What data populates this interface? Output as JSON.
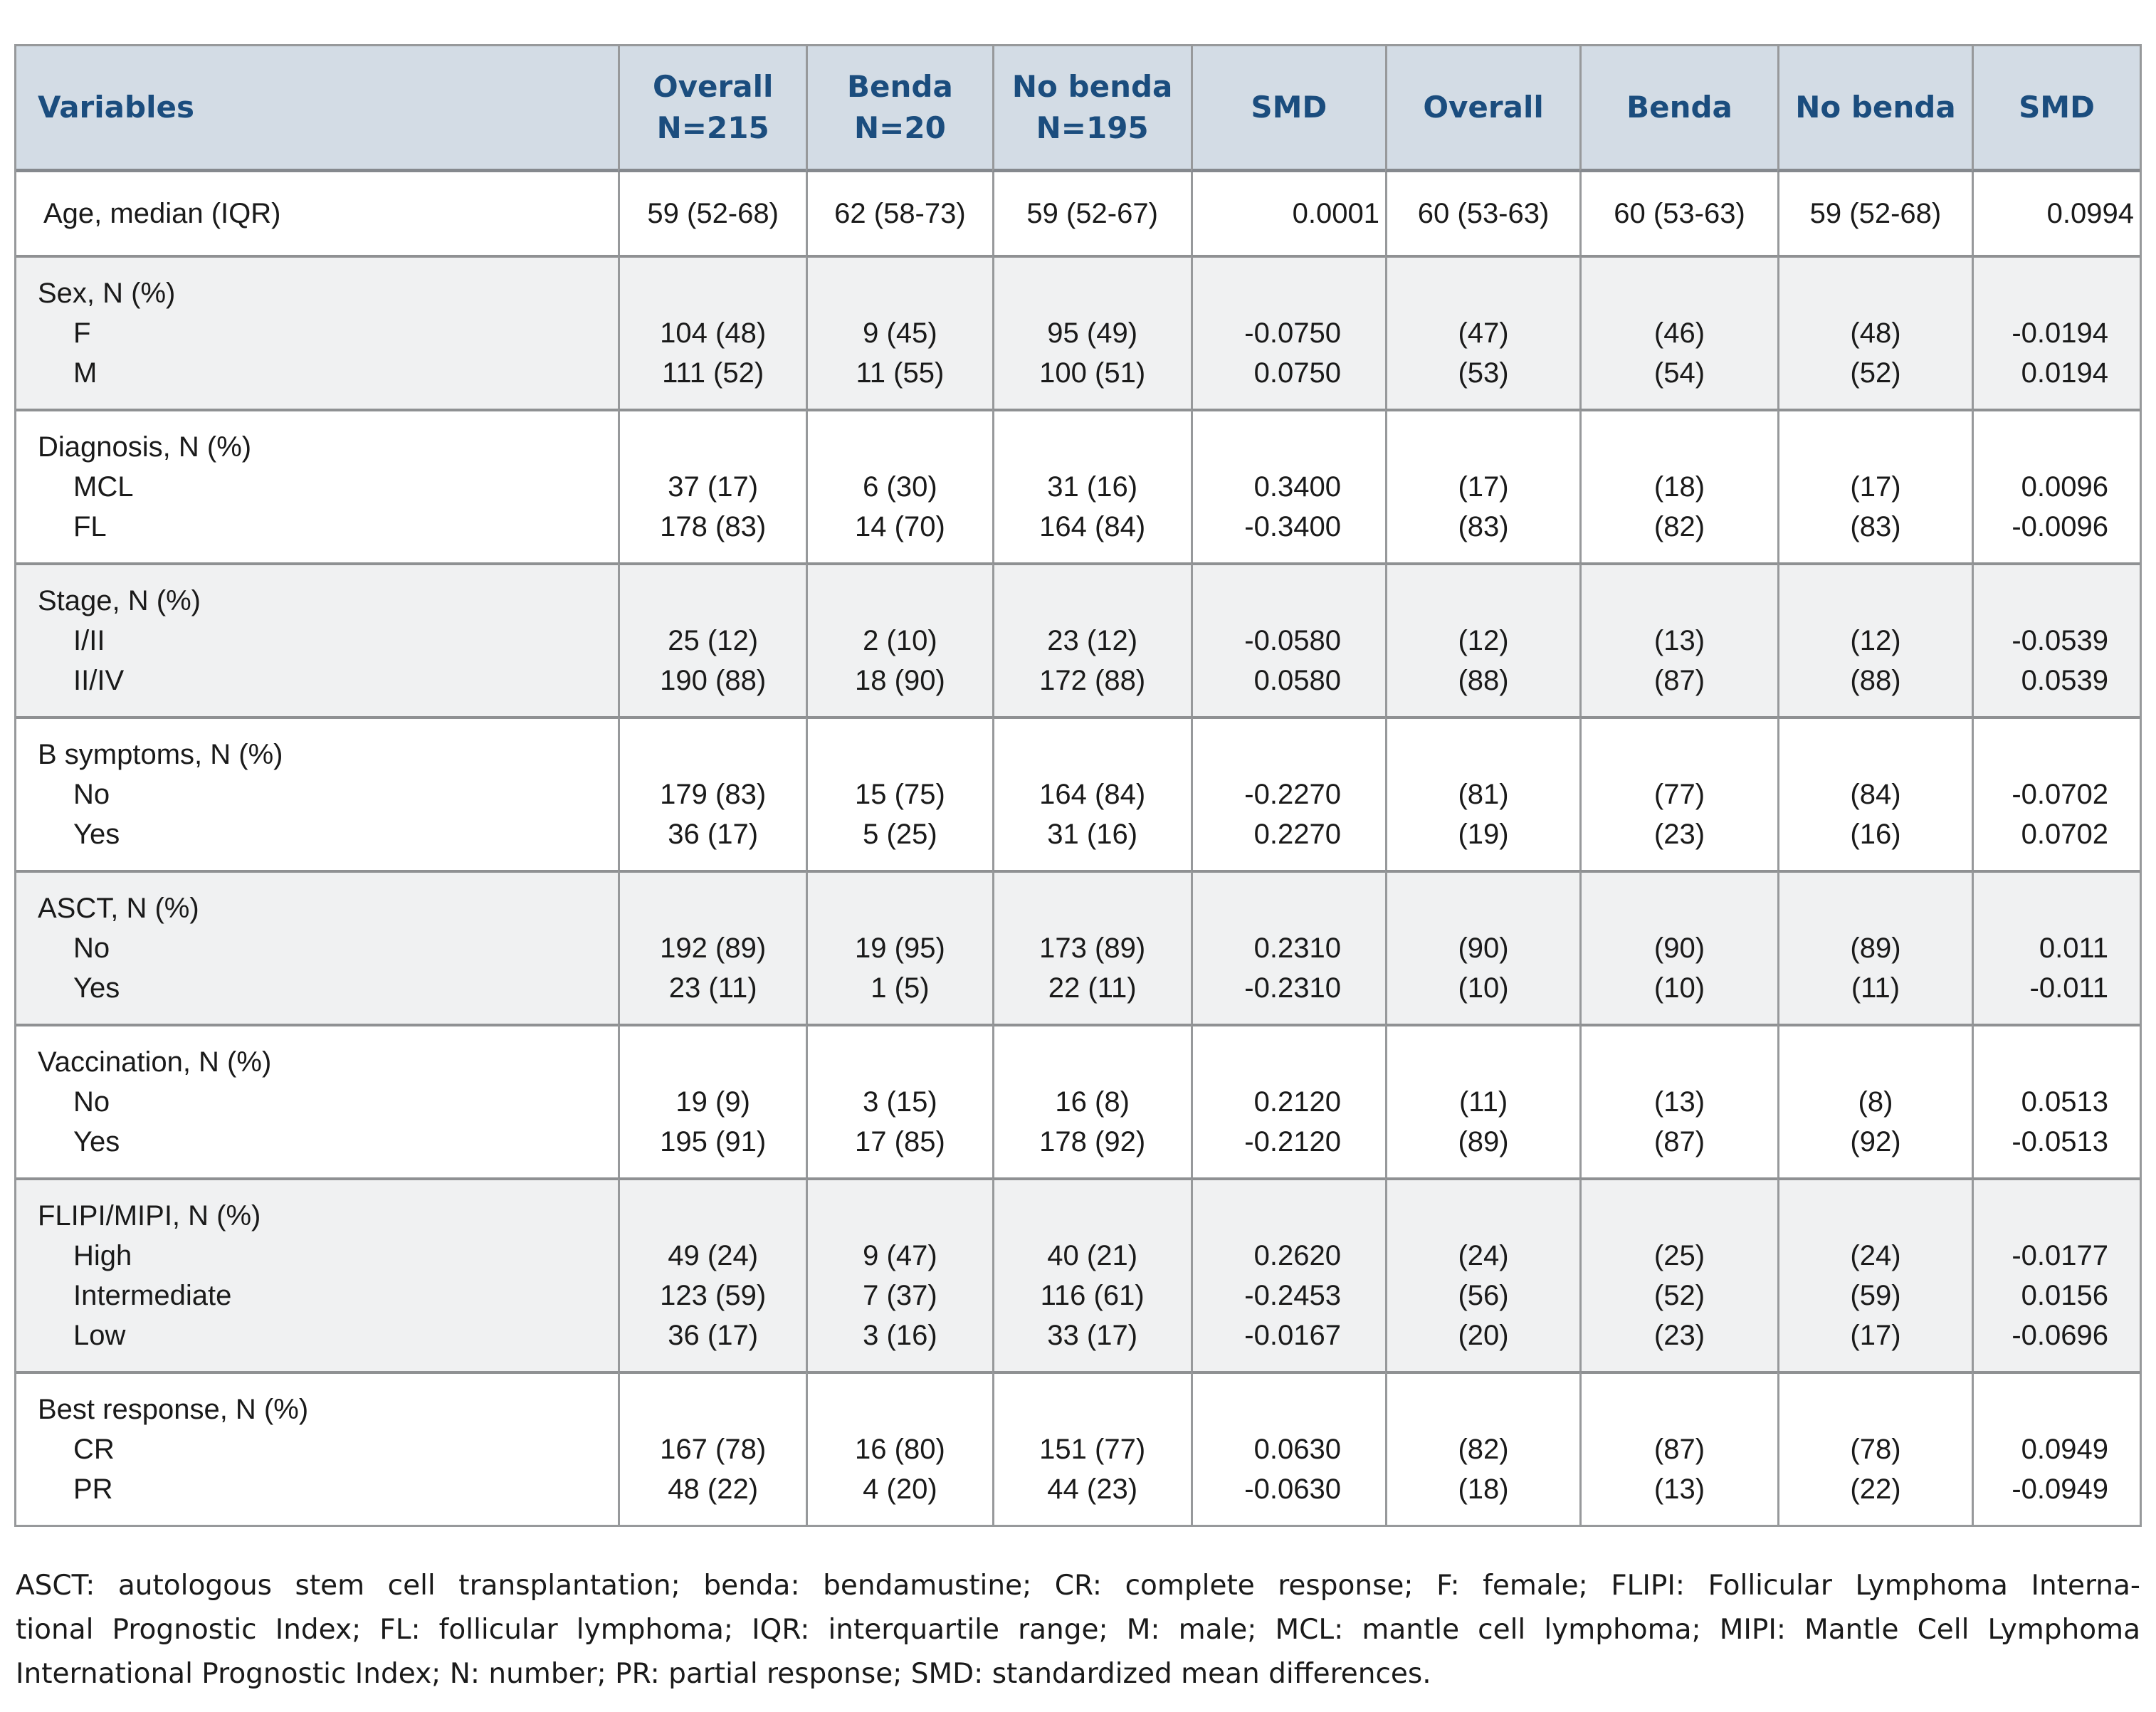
{
  "colors": {
    "header_bg": "#d3dce5",
    "header_text": "#1b4d7e",
    "shaded_band_bg": "#f0f1f2",
    "border": "#97999b",
    "separator": "#8f9193",
    "text": "#1a1a1a"
  },
  "header": {
    "columns": [
      {
        "label": "Variables",
        "sub": ""
      },
      {
        "label": "Overall",
        "sub": "N=215"
      },
      {
        "label": "Benda",
        "sub": "N=20"
      },
      {
        "label": "No benda",
        "sub": "N=195"
      },
      {
        "label": "SMD",
        "sub": ""
      },
      {
        "label": "Overall",
        "sub": ""
      },
      {
        "label": "Benda",
        "sub": ""
      },
      {
        "label": "No benda",
        "sub": ""
      },
      {
        "label": "SMD",
        "sub": ""
      }
    ]
  },
  "bands": [
    {
      "name": "age",
      "label": "Age, median (IQR)",
      "single": true,
      "shaded": false,
      "rows": [
        {
          "sub": "",
          "values": [
            "59 (52-68)",
            "62 (58-73)",
            "59 (52-67)",
            "0.0001",
            "60 (53-63)",
            "60 (53-63)",
            "59 (52-68)",
            "0.0994"
          ]
        }
      ]
    },
    {
      "name": "sex",
      "label": "Sex, N (%)",
      "single": false,
      "shaded": true,
      "rows": [
        {
          "sub": "F",
          "values": [
            "104 (48)",
            "9 (45)",
            "95 (49)",
            "-0.0750",
            "(47)",
            "(46)",
            "(48)",
            "-0.0194"
          ]
        },
        {
          "sub": "M",
          "values": [
            "111 (52)",
            "11 (55)",
            "100 (51)",
            "0.0750",
            "(53)",
            "(54)",
            "(52)",
            "0.0194"
          ]
        }
      ]
    },
    {
      "name": "diagnosis",
      "label": "Diagnosis, N (%)",
      "single": false,
      "shaded": false,
      "rows": [
        {
          "sub": "MCL",
          "values": [
            "37 (17)",
            "6 (30)",
            "31 (16)",
            "0.3400",
            "(17)",
            "(18)",
            "(17)",
            "0.0096"
          ]
        },
        {
          "sub": "FL",
          "values": [
            "178 (83)",
            "14 (70)",
            "164 (84)",
            "-0.3400",
            "(83)",
            "(82)",
            "(83)",
            "-0.0096"
          ]
        }
      ]
    },
    {
      "name": "stage",
      "label": "Stage, N (%)",
      "single": false,
      "shaded": true,
      "rows": [
        {
          "sub": "I/II",
          "values": [
            "25 (12)",
            "2 (10)",
            "23 (12)",
            "-0.0580",
            "(12)",
            "(13)",
            "(12)",
            "-0.0539"
          ]
        },
        {
          "sub": "II/IV",
          "values": [
            "190 (88)",
            "18 (90)",
            "172 (88)",
            "0.0580",
            "(88)",
            "(87)",
            "(88)",
            "0.0539"
          ]
        }
      ]
    },
    {
      "name": "b-symptoms",
      "label": "B symptoms, N (%)",
      "single": false,
      "shaded": false,
      "rows": [
        {
          "sub": "No",
          "values": [
            "179 (83)",
            "15 (75)",
            "164 (84)",
            "-0.2270",
            "(81)",
            "(77)",
            "(84)",
            "-0.0702"
          ]
        },
        {
          "sub": "Yes",
          "values": [
            "36 (17)",
            "5 (25)",
            "31 (16)",
            "0.2270",
            "(19)",
            "(23)",
            "(16)",
            "0.0702"
          ]
        }
      ]
    },
    {
      "name": "asct",
      "label": "ASCT, N (%)",
      "single": false,
      "shaded": true,
      "rows": [
        {
          "sub": "No",
          "values": [
            "192 (89)",
            "19 (95)",
            "173 (89)",
            "0.2310",
            "(90)",
            "(90)",
            "(89)",
            "0.011"
          ]
        },
        {
          "sub": "Yes",
          "values": [
            "23 (11)",
            "1 (5)",
            "22 (11)",
            "-0.2310",
            "(10)",
            "(10)",
            "(11)",
            "-0.011"
          ]
        }
      ]
    },
    {
      "name": "vaccination",
      "label": "Vaccination, N (%)",
      "single": false,
      "shaded": false,
      "rows": [
        {
          "sub": "No",
          "values": [
            "19 (9)",
            "3 (15)",
            "16 (8)",
            "0.2120",
            "(11)",
            "(13)",
            "(8)",
            "0.0513"
          ]
        },
        {
          "sub": "Yes",
          "values": [
            "195 (91)",
            "17 (85)",
            "178 (92)",
            "-0.2120",
            "(89)",
            "(87)",
            "(92)",
            "-0.0513"
          ]
        }
      ]
    },
    {
      "name": "flipi-mipi",
      "label": "FLIPI/MIPI, N (%)",
      "single": false,
      "shaded": true,
      "rows": [
        {
          "sub": "High",
          "values": [
            "49 (24)",
            "9 (47)",
            "40 (21)",
            "0.2620",
            "(24)",
            "(25)",
            "(24)",
            "-0.0177"
          ]
        },
        {
          "sub": "Intermediate",
          "values": [
            "123 (59)",
            "7 (37)",
            "116 (61)",
            "-0.2453",
            "(56)",
            "(52)",
            "(59)",
            "0.0156"
          ]
        },
        {
          "sub": "Low",
          "values": [
            "36 (17)",
            "3 (16)",
            "33 (17)",
            "-0.0167",
            "(20)",
            "(23)",
            "(17)",
            "-0.0696"
          ]
        }
      ]
    },
    {
      "name": "best-response",
      "label": "Best response, N (%)",
      "single": false,
      "shaded": false,
      "rows": [
        {
          "sub": "CR",
          "values": [
            "167 (78)",
            "16 (80)",
            "151 (77)",
            "0.0630",
            "(82)",
            "(87)",
            "(78)",
            "0.0949"
          ]
        },
        {
          "sub": "PR",
          "values": [
            "48 (22)",
            "4 (20)",
            "44 (23)",
            "-0.0630",
            "(18)",
            "(13)",
            "(22)",
            "-0.0949"
          ]
        }
      ]
    }
  ],
  "footnote": {
    "lines": [
      "ASCT: autologous stem cell transplantation; benda: bendamustine; CR: complete response; F: female; FLIPI: Follicular Lymphoma Interna-",
      "tional Prognostic Index; FL: follicular lymphoma; IQR: interquartile range; M: male; MCL: mantle cell lymphoma; MIPI: Mantle Cell Lymphoma",
      "International Prognostic Index; N: number; PR: partial response; SMD: standardized mean differences."
    ]
  }
}
